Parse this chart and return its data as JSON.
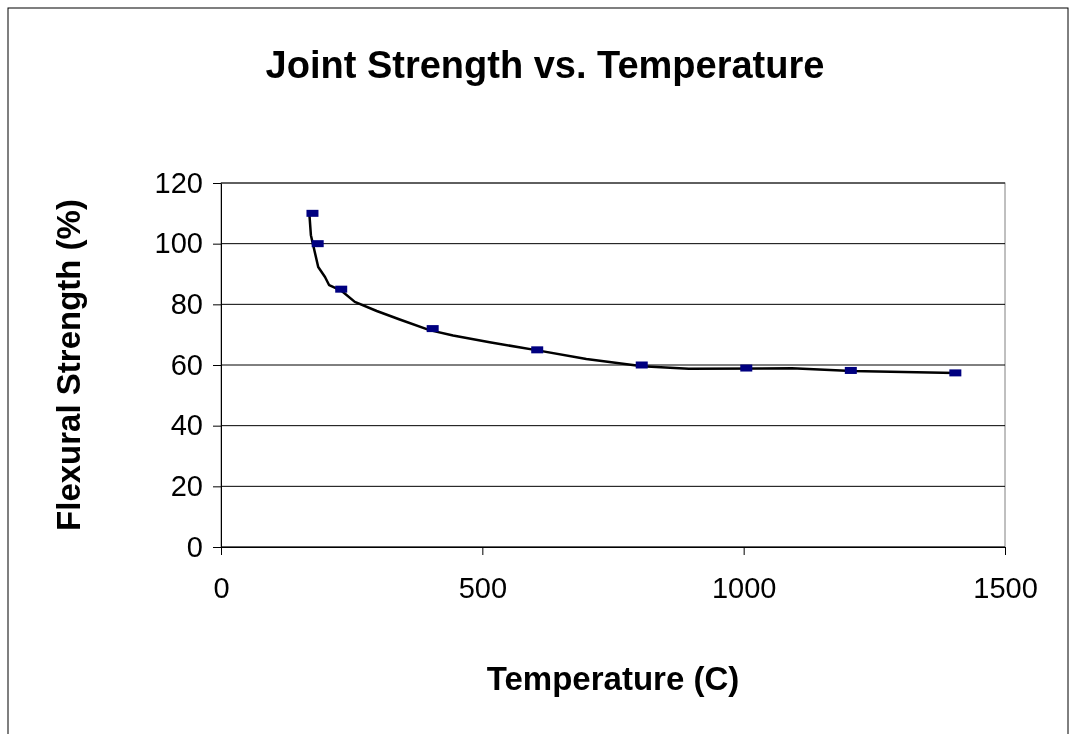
{
  "chart_data": {
    "type": "scatter",
    "title": "Joint Strength vs. Temperature",
    "xlabel": "Temperature (C)",
    "ylabel": "Flexural Strength (%)",
    "xlim": [
      0,
      1500
    ],
    "xticks": [
      0,
      500,
      1000,
      1500
    ],
    "ylim": [
      0,
      120
    ],
    "yticks": [
      0,
      20,
      40,
      60,
      80,
      100,
      120
    ],
    "grid": "y",
    "series": [
      {
        "color": "#000080",
        "marker": "square",
        "x": [
          175,
          185,
          230,
          405,
          605,
          805,
          1005,
          1205,
          1405
        ],
        "values": [
          110,
          100,
          85,
          72,
          65,
          60,
          59,
          58.2,
          57.4
        ]
      },
      {
        "type": "line",
        "color": "#000000",
        "marker": "none",
        "line_style": "solid",
        "x": [
          169,
          172,
          186,
          199,
          207,
          231,
          256,
          298,
          342,
          399,
          444,
          514,
          603,
          699,
          806,
          895,
          1092,
          1207,
          1405
        ],
        "values": [
          110,
          102.8,
          92.3,
          89,
          86.3,
          84.4,
          80.8,
          77.8,
          75,
          71.5,
          69.7,
          67.5,
          64.9,
          62,
          59.6,
          58.8,
          58.9,
          58,
          57.4
        ]
      }
    ]
  }
}
